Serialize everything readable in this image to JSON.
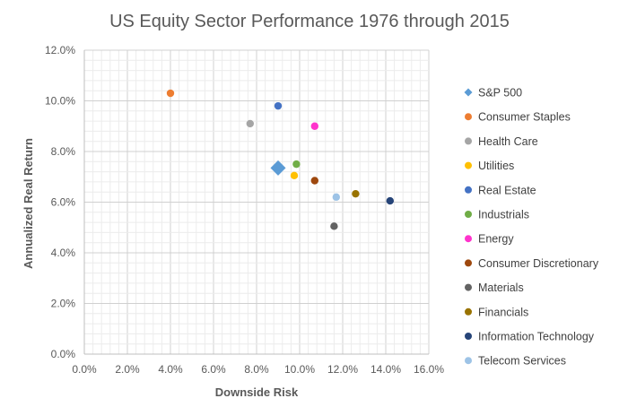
{
  "chart_data": {
    "type": "scatter",
    "title": "US Equity Sector Performance 1976 through 2015",
    "xlabel": "Downside Risk",
    "ylabel": "Annualized Real Return",
    "xlim": [
      0,
      0.16
    ],
    "ylim": [
      0,
      0.12
    ],
    "x_ticks": [
      "0.0%",
      "2.0%",
      "4.0%",
      "6.0%",
      "8.0%",
      "10.0%",
      "12.0%",
      "14.0%",
      "16.0%"
    ],
    "y_ticks": [
      "0.0%",
      "2.0%",
      "4.0%",
      "6.0%",
      "8.0%",
      "10.0%",
      "12.0%"
    ],
    "grid": "major and minor",
    "legend_position": "right",
    "series": [
      {
        "name": "S&P 500",
        "marker": "diamond",
        "color": "#5B9BD5",
        "x": 0.09,
        "y": 0.0735
      },
      {
        "name": "Consumer Staples",
        "marker": "circle",
        "color": "#ED7D31",
        "x": 0.04,
        "y": 0.103
      },
      {
        "name": "Health Care",
        "marker": "circle",
        "color": "#A5A5A5",
        "x": 0.077,
        "y": 0.091
      },
      {
        "name": "Utilities",
        "marker": "circle",
        "color": "#FFC000",
        "x": 0.0975,
        "y": 0.0705
      },
      {
        "name": "Real Estate",
        "marker": "circle",
        "color": "#4472C4",
        "x": 0.09,
        "y": 0.098
      },
      {
        "name": "Industrials",
        "marker": "circle",
        "color": "#70AD47",
        "x": 0.0985,
        "y": 0.075
      },
      {
        "name": "Energy",
        "marker": "circle",
        "color": "#FF33CC",
        "x": 0.107,
        "y": 0.09
      },
      {
        "name": "Consumer Discretionary",
        "marker": "circle",
        "color": "#9E480E",
        "x": 0.107,
        "y": 0.0685
      },
      {
        "name": "Materials",
        "marker": "circle",
        "color": "#636363",
        "x": 0.116,
        "y": 0.0505
      },
      {
        "name": "Financials",
        "marker": "circle",
        "color": "#997300",
        "x": 0.126,
        "y": 0.0633
      },
      {
        "name": "Information Technology",
        "marker": "circle",
        "color": "#264478",
        "x": 0.142,
        "y": 0.0605
      },
      {
        "name": "Telecom Services",
        "marker": "circle",
        "color": "#9DC3E6",
        "x": 0.117,
        "y": 0.062
      }
    ]
  }
}
